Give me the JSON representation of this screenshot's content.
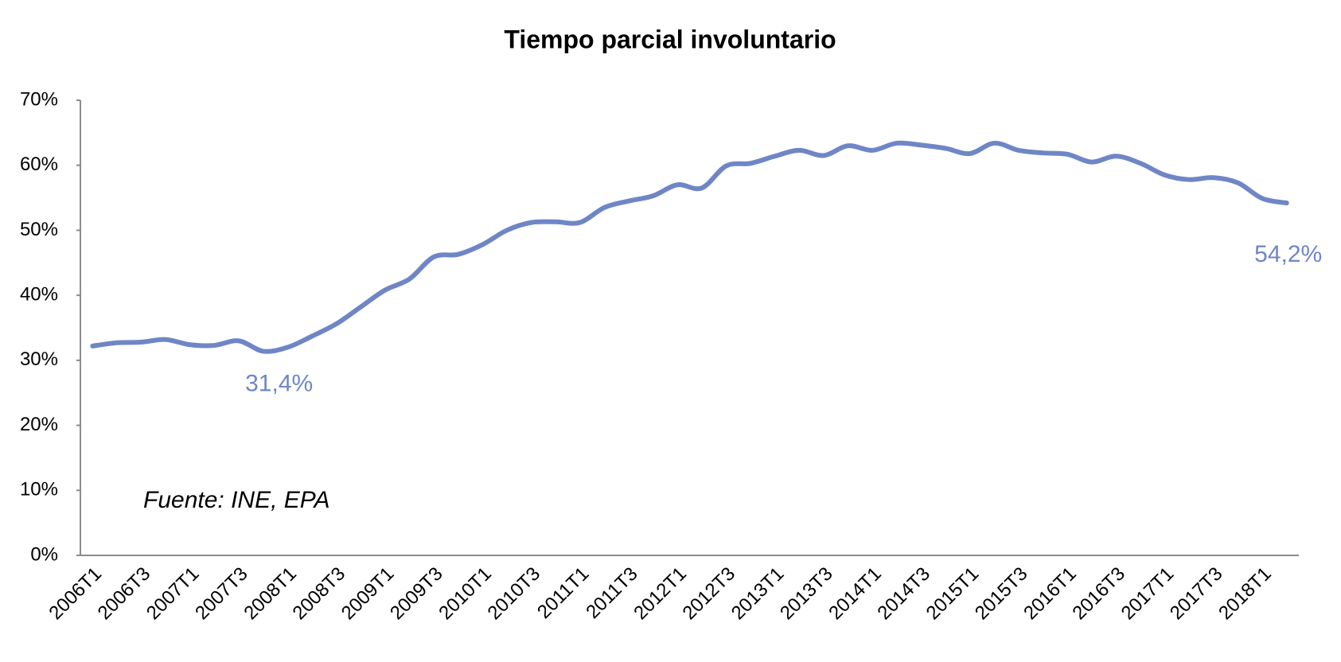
{
  "chart_data": {
    "type": "line",
    "title": "Tiempo parcial involuntario",
    "note": "Fuente: INE, EPA",
    "categories": [
      "2006T1",
      null,
      "2006T3",
      null,
      "2007T1",
      null,
      "2007T3",
      null,
      "2008T1",
      null,
      "2008T3",
      null,
      "2009T1",
      null,
      "2009T3",
      null,
      "2010T1",
      null,
      "2010T3",
      null,
      "2011T1",
      null,
      "2011T3",
      null,
      "2012T1",
      null,
      "2012T3",
      null,
      "2013T1",
      null,
      "2013T3",
      null,
      "2014T1",
      null,
      "2014T3",
      null,
      "2015T1",
      null,
      "2015T3",
      null,
      "2016T1",
      null,
      "2016T3",
      null,
      "2017T1",
      null,
      "2017T3",
      null,
      "2018T1",
      null
    ],
    "values": [
      32.2,
      32.7,
      32.8,
      33.2,
      32.4,
      32.3,
      33.0,
      31.4,
      32.0,
      33.7,
      35.6,
      38.2,
      40.8,
      42.5,
      45.9,
      46.3,
      47.8,
      50.0,
      51.2,
      51.3,
      51.2,
      53.5,
      54.5,
      55.3,
      57.0,
      56.5,
      59.9,
      60.3,
      61.4,
      62.3,
      61.5,
      63.0,
      62.3,
      63.4,
      63.1,
      62.6,
      61.8,
      63.4,
      62.3,
      61.9,
      61.7,
      60.5,
      61.4,
      60.3,
      58.5,
      57.8,
      58.1,
      57.3,
      54.9,
      54.2
    ],
    "value_labels": [
      null,
      null,
      null,
      null,
      null,
      null,
      null,
      "31,4%",
      null,
      null,
      null,
      null,
      null,
      null,
      null,
      null,
      null,
      null,
      null,
      null,
      null,
      null,
      null,
      null,
      null,
      null,
      null,
      null,
      null,
      null,
      null,
      null,
      null,
      null,
      null,
      null,
      null,
      null,
      null,
      null,
      null,
      null,
      null,
      null,
      null,
      null,
      null,
      null,
      null,
      "54,2%"
    ],
    "color": "#6f86c6",
    "ylim": [
      0,
      70
    ],
    "yticks": [
      {
        "value": 0,
        "label": "0%"
      },
      {
        "value": 10,
        "label": "10%"
      },
      {
        "value": 20,
        "label": "20%"
      },
      {
        "value": 30,
        "label": "30%"
      },
      {
        "value": 40,
        "label": "40%"
      },
      {
        "value": 50,
        "label": "50%"
      },
      {
        "value": 60,
        "label": "60%"
      },
      {
        "value": 70,
        "label": "70%"
      }
    ],
    "grid": false
  }
}
